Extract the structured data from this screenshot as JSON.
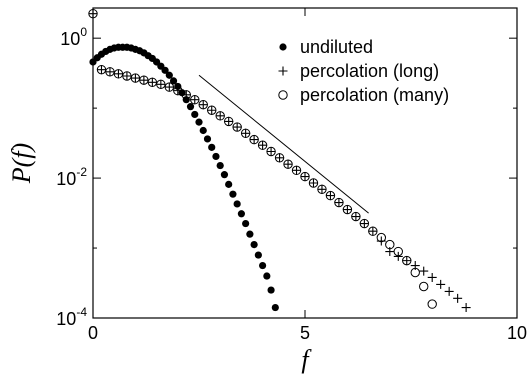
{
  "chart_data": {
    "type": "scatter",
    "xlabel": "f",
    "ylabel": "P(f)",
    "xlim": [
      0,
      10
    ],
    "xticks": [
      0,
      5,
      10
    ],
    "ylim": [
      0.0001,
      2.7
    ],
    "log_y": true,
    "yticks": [
      {
        "value": 0.0001,
        "label": "10",
        "exp": "-4"
      },
      {
        "value": 0.01,
        "label": "10",
        "exp": "-2"
      },
      {
        "value": 1,
        "label": "10",
        "exp": "0"
      }
    ],
    "yminor": [
      0.001,
      0.1
    ],
    "legend": "upper right",
    "series": [
      {
        "name": "undiluted",
        "marker": "filled-circle",
        "color": "#000000",
        "x": [
          0,
          0.1,
          0.2,
          0.3,
          0.4,
          0.5,
          0.6,
          0.7,
          0.8,
          0.9,
          1.0,
          1.1,
          1.2,
          1.3,
          1.4,
          1.5,
          1.6,
          1.7,
          1.8,
          1.9,
          2.0,
          2.1,
          2.2,
          2.3,
          2.4,
          2.5,
          2.6,
          2.7,
          2.8,
          2.9,
          3.0,
          3.1,
          3.2,
          3.3,
          3.4,
          3.5,
          3.6,
          3.7,
          3.8,
          3.9,
          4.0,
          4.1,
          4.2,
          4.3
        ],
        "values": [
          0.457,
          0.525,
          0.589,
          0.646,
          0.692,
          0.724,
          0.741,
          0.741,
          0.741,
          0.724,
          0.692,
          0.661,
          0.617,
          0.562,
          0.513,
          0.457,
          0.398,
          0.347,
          0.295,
          0.245,
          0.204,
          0.166,
          0.132,
          0.105,
          0.0813,
          0.0631,
          0.0479,
          0.0363,
          0.0275,
          0.0204,
          0.0151,
          0.0112,
          0.00813,
          0.00589,
          0.00427,
          0.00309,
          0.00224,
          0.00158,
          0.00112,
          0.000794,
          0.000562,
          0.000398,
          0.000251,
          0.000141
        ]
      },
      {
        "name": "percolation (long)",
        "marker": "plus",
        "color": "#000000",
        "x": [
          0,
          0.2,
          0.4,
          0.6,
          0.8,
          1.0,
          1.2,
          1.4,
          1.6,
          1.8,
          2.0,
          2.2,
          2.4,
          2.6,
          2.8,
          3.0,
          3.2,
          3.4,
          3.6,
          3.8,
          4.0,
          4.2,
          4.4,
          4.6,
          4.8,
          5.0,
          5.2,
          5.4,
          5.6,
          5.8,
          6.0,
          6.2,
          6.4,
          6.6,
          6.8,
          7.0,
          7.2,
          7.4,
          7.6,
          7.8,
          8.0,
          8.2,
          8.4,
          8.6,
          8.8
        ],
        "values": [
          2.24,
          0.355,
          0.331,
          0.309,
          0.288,
          0.269,
          0.251,
          0.234,
          0.219,
          0.2,
          0.178,
          0.155,
          0.132,
          0.112,
          0.0933,
          0.0776,
          0.0646,
          0.0537,
          0.0437,
          0.0355,
          0.0295,
          0.024,
          0.0195,
          0.0158,
          0.0129,
          0.0105,
          0.00851,
          0.00692,
          0.00562,
          0.00447,
          0.00355,
          0.00282,
          0.00224,
          0.00174,
          0.00126,
          0.000891,
          0.000759,
          0.000661,
          0.000562,
          0.000468,
          0.00038,
          0.000302,
          0.00024,
          0.000191,
          0.000141
        ]
      },
      {
        "name": "percolation (many)",
        "marker": "open-circle",
        "color": "#000000",
        "x": [
          0,
          0.2,
          0.4,
          0.6,
          0.8,
          1.0,
          1.2,
          1.4,
          1.6,
          1.8,
          2.0,
          2.2,
          2.4,
          2.6,
          2.8,
          3.0,
          3.2,
          3.4,
          3.6,
          3.8,
          4.0,
          4.2,
          4.4,
          4.6,
          4.8,
          5.0,
          5.2,
          5.4,
          5.6,
          5.8,
          6.0,
          6.2,
          6.4,
          6.6,
          6.8,
          7.0,
          7.2,
          7.4,
          7.6,
          7.8,
          8.0
        ],
        "values": [
          2.24,
          0.355,
          0.331,
          0.309,
          0.288,
          0.269,
          0.251,
          0.234,
          0.219,
          0.2,
          0.178,
          0.155,
          0.132,
          0.112,
          0.0933,
          0.0776,
          0.0646,
          0.0537,
          0.0437,
          0.0355,
          0.0295,
          0.024,
          0.0195,
          0.0158,
          0.0129,
          0.0105,
          0.00851,
          0.00692,
          0.00562,
          0.00447,
          0.00355,
          0.00282,
          0.00224,
          0.00174,
          0.00141,
          0.00112,
          0.000891,
          0.000661,
          0.000447,
          0.000282,
          0.000158
        ]
      }
    ],
    "reference_line": {
      "x": [
        2.5,
        6.5
      ],
      "values": [
        0.295,
        0.00316
      ]
    }
  }
}
